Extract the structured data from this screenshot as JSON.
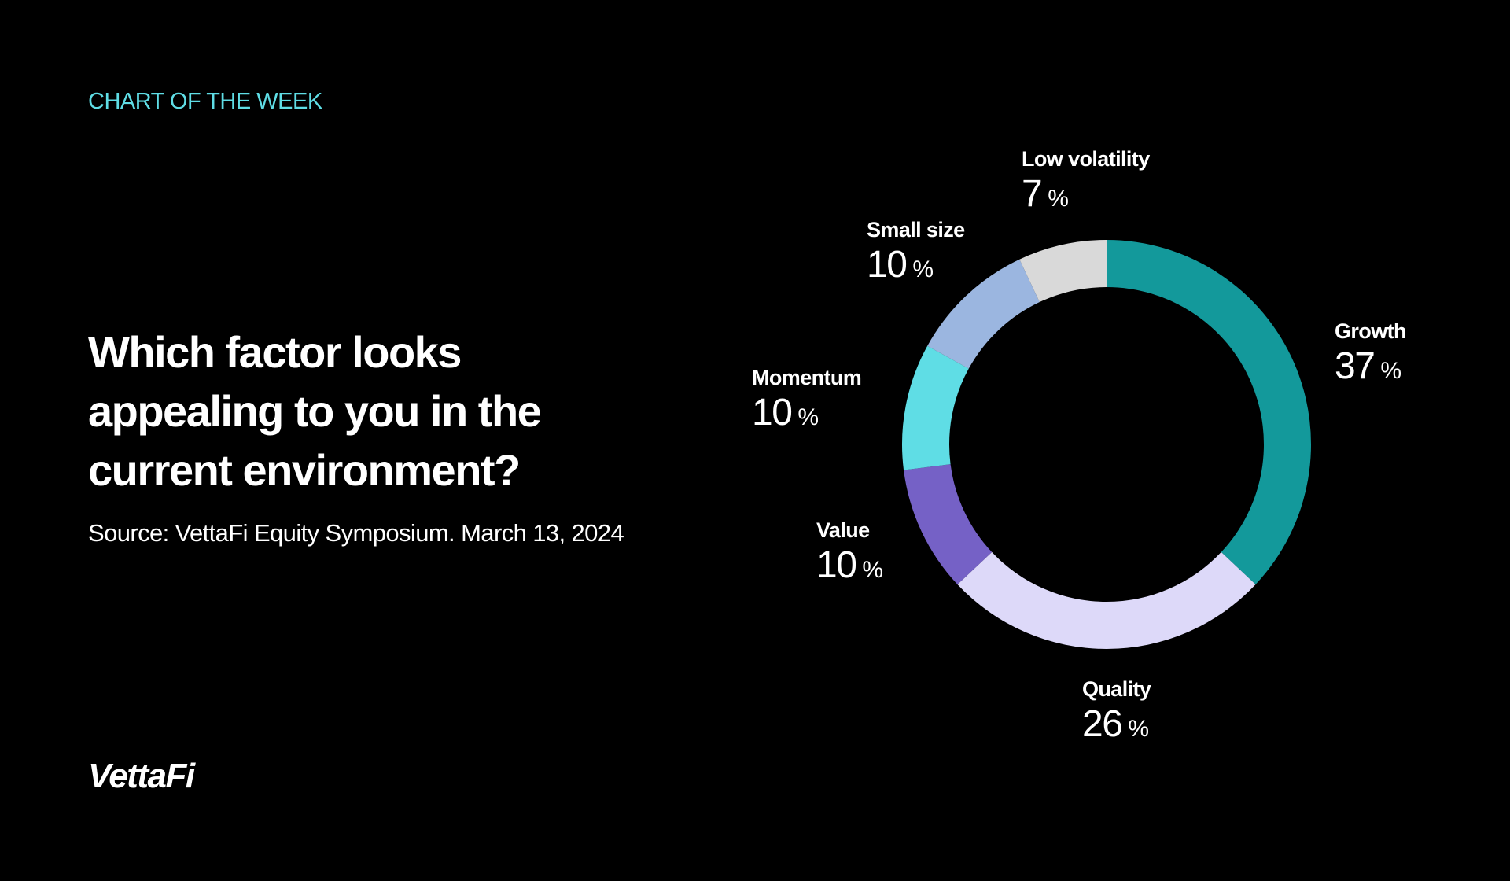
{
  "header": {
    "eyebrow": "CHART OF THE WEEK",
    "headline": "Which factor looks appealing to you in the current environment?",
    "source": "Source: VettaFi Equity Symposium. March 13, 2024"
  },
  "brand": {
    "logo_text": "VettaFi"
  },
  "colors": {
    "background": "#000000",
    "eyebrow": "#5fdde5",
    "text": "#ffffff"
  },
  "chart_data": {
    "type": "pie",
    "variant": "donut",
    "unit": "%",
    "start": "12 o'clock, clockwise",
    "slices": [
      {
        "label": "Growth",
        "value": 37,
        "color": "#13999b"
      },
      {
        "label": "Quality",
        "value": 26,
        "color": "#ddd9f9"
      },
      {
        "label": "Value",
        "value": 10,
        "color": "#7561c6"
      },
      {
        "label": "Momentum",
        "value": 10,
        "color": "#5fdde5"
      },
      {
        "label": "Small size",
        "value": 10,
        "color": "#9bb6e0"
      },
      {
        "label": "Low volatility",
        "value": 7,
        "color": "#d9d9d9"
      }
    ]
  }
}
